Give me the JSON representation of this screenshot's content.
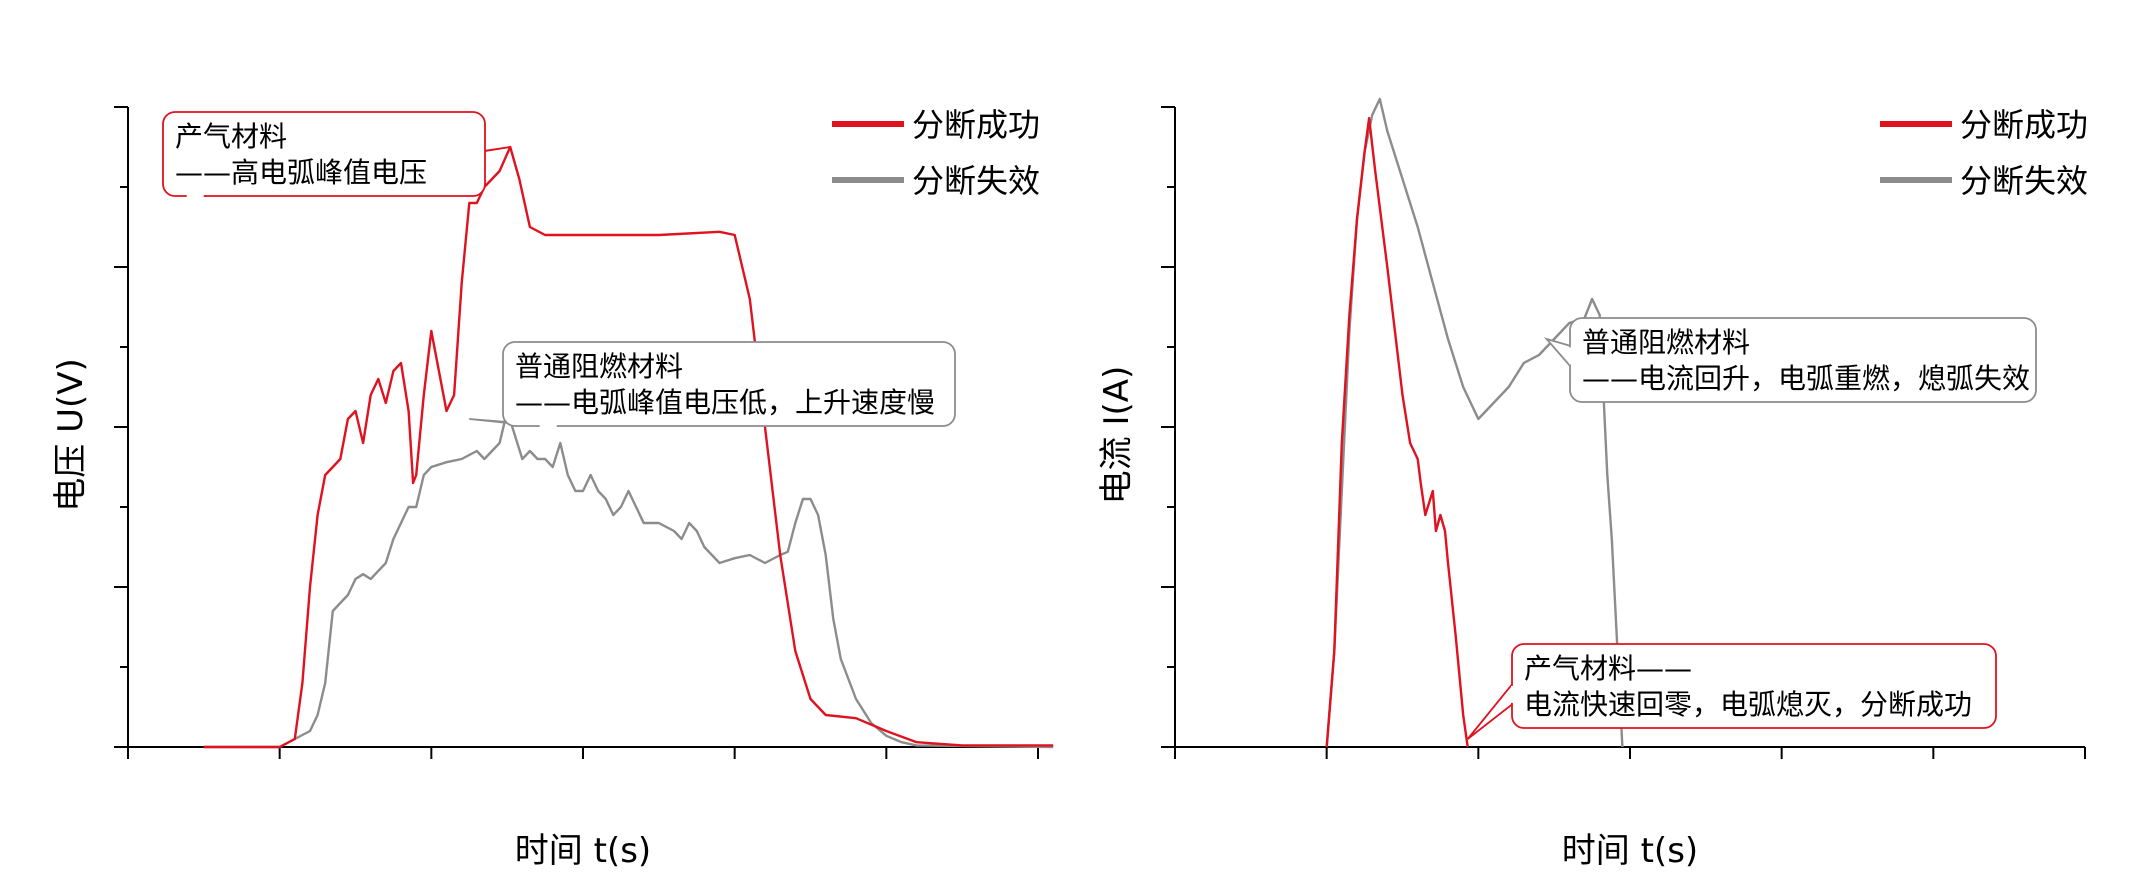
{
  "chart_data": [
    {
      "type": "line",
      "xlabel": "时间 t(s)",
      "ylabel": "电压 U(V)",
      "legend_position": "top-right",
      "x_tick_count": 6,
      "y_tick_count": 8,
      "xlim": [
        -1,
        5
      ],
      "ylim": [
        0,
        4
      ],
      "series": [
        {
          "name": "分断成功",
          "color": "#e0121f",
          "points": [
            [
              -0.5,
              0.0
            ],
            [
              0.0,
              0.0
            ],
            [
              0.1,
              0.05
            ],
            [
              0.15,
              0.4
            ],
            [
              0.2,
              1.0
            ],
            [
              0.25,
              1.45
            ],
            [
              0.3,
              1.7
            ],
            [
              0.35,
              1.75
            ],
            [
              0.4,
              1.8
            ],
            [
              0.45,
              2.05
            ],
            [
              0.5,
              2.1
            ],
            [
              0.55,
              1.9
            ],
            [
              0.6,
              2.2
            ],
            [
              0.65,
              2.3
            ],
            [
              0.7,
              2.15
            ],
            [
              0.75,
              2.35
            ],
            [
              0.8,
              2.4
            ],
            [
              0.85,
              2.1
            ],
            [
              0.88,
              1.65
            ],
            [
              0.9,
              1.7
            ],
            [
              0.95,
              2.2
            ],
            [
              1.0,
              2.6
            ],
            [
              1.05,
              2.35
            ],
            [
              1.1,
              2.1
            ],
            [
              1.15,
              2.2
            ],
            [
              1.2,
              2.9
            ],
            [
              1.25,
              3.4
            ],
            [
              1.3,
              3.4
            ],
            [
              1.35,
              3.5
            ],
            [
              1.45,
              3.6
            ],
            [
              1.52,
              3.75
            ],
            [
              1.58,
              3.55
            ],
            [
              1.65,
              3.25
            ],
            [
              1.75,
              3.2
            ],
            [
              2.0,
              3.2
            ],
            [
              2.5,
              3.2
            ],
            [
              2.9,
              3.22
            ],
            [
              3.0,
              3.2
            ],
            [
              3.1,
              2.8
            ],
            [
              3.2,
              2.0
            ],
            [
              3.3,
              1.2
            ],
            [
              3.4,
              0.6
            ],
            [
              3.5,
              0.3
            ],
            [
              3.6,
              0.2
            ],
            [
              3.8,
              0.18
            ],
            [
              4.0,
              0.1
            ],
            [
              4.2,
              0.03
            ],
            [
              4.5,
              0.01
            ],
            [
              5.1,
              0.01
            ]
          ]
        },
        {
          "name": "分断失效",
          "color": "#8c8c8c",
          "points": [
            [
              -0.5,
              0.0
            ],
            [
              0.0,
              0.0
            ],
            [
              0.1,
              0.05
            ],
            [
              0.2,
              0.1
            ],
            [
              0.25,
              0.2
            ],
            [
              0.3,
              0.4
            ],
            [
              0.35,
              0.85
            ],
            [
              0.4,
              0.9
            ],
            [
              0.45,
              0.95
            ],
            [
              0.5,
              1.05
            ],
            [
              0.55,
              1.08
            ],
            [
              0.6,
              1.05
            ],
            [
              0.7,
              1.15
            ],
            [
              0.75,
              1.3
            ],
            [
              0.8,
              1.4
            ],
            [
              0.85,
              1.5
            ],
            [
              0.9,
              1.5
            ],
            [
              0.95,
              1.7
            ],
            [
              1.0,
              1.75
            ],
            [
              1.1,
              1.78
            ],
            [
              1.2,
              1.8
            ],
            [
              1.3,
              1.85
            ],
            [
              1.35,
              1.8
            ],
            [
              1.4,
              1.85
            ],
            [
              1.45,
              1.9
            ],
            [
              1.5,
              2.1
            ],
            [
              1.55,
              1.95
            ],
            [
              1.6,
              1.8
            ],
            [
              1.65,
              1.85
            ],
            [
              1.7,
              1.8
            ],
            [
              1.75,
              1.8
            ],
            [
              1.8,
              1.75
            ],
            [
              1.85,
              1.9
            ],
            [
              1.9,
              1.7
            ],
            [
              1.95,
              1.6
            ],
            [
              2.0,
              1.6
            ],
            [
              2.05,
              1.7
            ],
            [
              2.1,
              1.6
            ],
            [
              2.15,
              1.55
            ],
            [
              2.2,
              1.45
            ],
            [
              2.25,
              1.5
            ],
            [
              2.3,
              1.6
            ],
            [
              2.35,
              1.5
            ],
            [
              2.4,
              1.4
            ],
            [
              2.5,
              1.4
            ],
            [
              2.6,
              1.35
            ],
            [
              2.65,
              1.3
            ],
            [
              2.7,
              1.4
            ],
            [
              2.75,
              1.35
            ],
            [
              2.8,
              1.25
            ],
            [
              2.85,
              1.2
            ],
            [
              2.9,
              1.15
            ],
            [
              3.0,
              1.18
            ],
            [
              3.1,
              1.2
            ],
            [
              3.2,
              1.15
            ],
            [
              3.3,
              1.2
            ],
            [
              3.35,
              1.22
            ],
            [
              3.4,
              1.4
            ],
            [
              3.45,
              1.55
            ],
            [
              3.5,
              1.55
            ],
            [
              3.55,
              1.45
            ],
            [
              3.6,
              1.2
            ],
            [
              3.65,
              0.8
            ],
            [
              3.7,
              0.55
            ],
            [
              3.8,
              0.3
            ],
            [
              3.9,
              0.15
            ],
            [
              4.0,
              0.07
            ],
            [
              4.1,
              0.03
            ],
            [
              4.2,
              0.01
            ],
            [
              5.1,
              0.0
            ]
          ]
        }
      ],
      "annotations": [
        {
          "lines": [
            "产气材料",
            "——高电弧峰值电压"
          ],
          "color": "#e0121f",
          "target": [
            1.52,
            3.75
          ]
        },
        {
          "lines": [
            "普通阻燃材料",
            "——电弧峰值电压低，上升速度慢"
          ],
          "color": "#8c8c8c",
          "target": [
            1.25,
            2.05
          ]
        }
      ]
    },
    {
      "type": "line",
      "xlabel": "时间 t(s)",
      "ylabel": "电流 I(A)",
      "legend_position": "top-right",
      "x_tick_count": 6,
      "y_tick_count": 8,
      "xlim": [
        -1,
        5
      ],
      "ylim": [
        -2,
        2
      ],
      "series": [
        {
          "name": "分断成功",
          "color": "#e0121f",
          "points": [
            [
              0.0,
              -2.0
            ],
            [
              0.05,
              -1.4
            ],
            [
              0.1,
              -0.1
            ],
            [
              0.15,
              0.7
            ],
            [
              0.2,
              1.3
            ],
            [
              0.25,
              1.72
            ],
            [
              0.28,
              1.93
            ],
            [
              0.32,
              1.6
            ],
            [
              0.4,
              1.0
            ],
            [
              0.45,
              0.6
            ],
            [
              0.5,
              0.2
            ],
            [
              0.55,
              -0.1
            ],
            [
              0.6,
              -0.2
            ],
            [
              0.62,
              -0.35
            ],
            [
              0.65,
              -0.55
            ],
            [
              0.7,
              -0.4
            ],
            [
              0.72,
              -0.65
            ],
            [
              0.75,
              -0.55
            ],
            [
              0.78,
              -0.65
            ],
            [
              0.8,
              -0.85
            ],
            [
              0.85,
              -1.3
            ],
            [
              0.9,
              -1.8
            ],
            [
              0.93,
              -2.0
            ]
          ]
        },
        {
          "name": "分断失效",
          "color": "#8c8c8c",
          "points": [
            [
              0.0,
              -2.0
            ],
            [
              0.05,
              -1.4
            ],
            [
              0.1,
              -0.4
            ],
            [
              0.15,
              0.6
            ],
            [
              0.2,
              1.3
            ],
            [
              0.25,
              1.72
            ],
            [
              0.3,
              1.95
            ],
            [
              0.35,
              2.05
            ],
            [
              0.4,
              1.85
            ],
            [
              0.45,
              1.7
            ],
            [
              0.5,
              1.55
            ],
            [
              0.6,
              1.25
            ],
            [
              0.7,
              0.9
            ],
            [
              0.8,
              0.55
            ],
            [
              0.9,
              0.25
            ],
            [
              0.95,
              0.15
            ],
            [
              1.0,
              0.05
            ],
            [
              1.05,
              0.1
            ],
            [
              1.1,
              0.15
            ],
            [
              1.15,
              0.2
            ],
            [
              1.2,
              0.25
            ],
            [
              1.3,
              0.4
            ],
            [
              1.4,
              0.45
            ],
            [
              1.5,
              0.55
            ],
            [
              1.6,
              0.65
            ],
            [
              1.7,
              0.68
            ],
            [
              1.75,
              0.8
            ],
            [
              1.8,
              0.7
            ],
            [
              1.85,
              -0.3
            ],
            [
              1.88,
              -0.7
            ],
            [
              1.95,
              -2.0
            ]
          ]
        }
      ],
      "annotations": [
        {
          "lines": [
            "普通阻燃材料",
            "——电流回升，电弧重燃，熄弧失效"
          ],
          "color": "#8c8c8c",
          "target": [
            1.45,
            0.55
          ]
        },
        {
          "lines": [
            "产气材料——",
            "电流快速回零，电弧熄灭，分断成功"
          ],
          "color": "#e0121f",
          "target": [
            0.93,
            -1.95
          ]
        }
      ]
    }
  ]
}
